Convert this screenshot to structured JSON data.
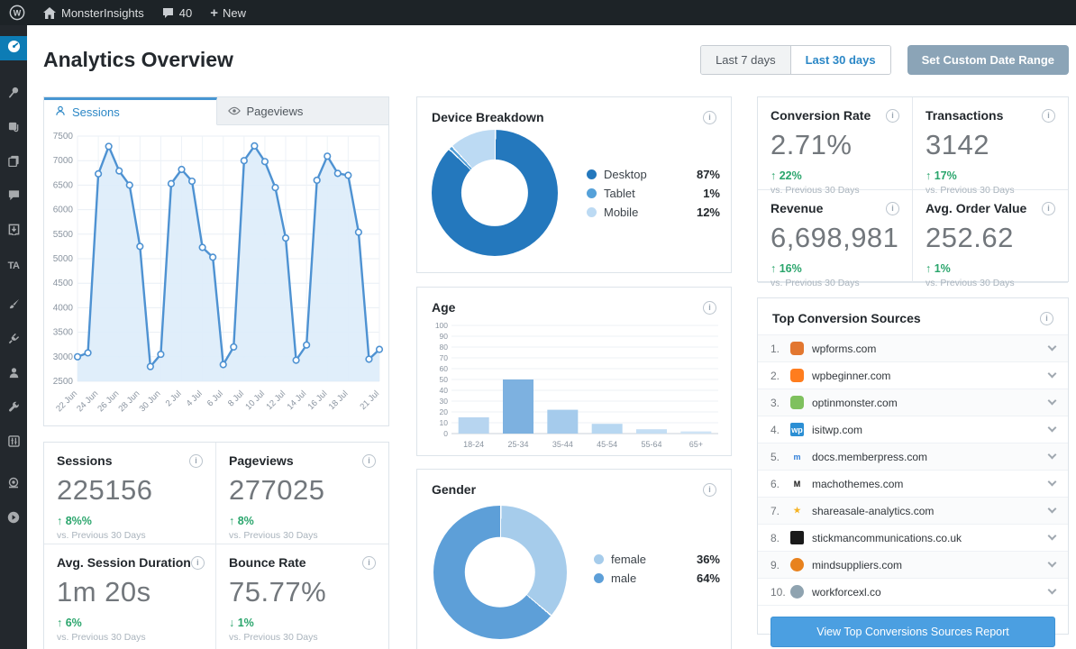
{
  "admin_bar": {
    "site_name": "MonsterInsights",
    "comments_count": "40",
    "new_label": "New"
  },
  "header": {
    "title": "Analytics Overview",
    "range_buttons": [
      {
        "label": "Last 7 days",
        "active": false
      },
      {
        "label": "Last 30 days",
        "active": true
      }
    ],
    "custom_range_label": "Set Custom Date Range"
  },
  "tabs": [
    {
      "label": "Sessions",
      "active": true
    },
    {
      "label": "Pageviews",
      "active": false
    }
  ],
  "chart_data": [
    {
      "id": "sessions-line",
      "type": "line",
      "title": "Sessions",
      "x_labels": [
        "22 Jun",
        "24 Jun",
        "26 Jun",
        "28 Jun",
        "30 Jun",
        "2 Jul",
        "4 Jul",
        "6 Jul",
        "8 Jul",
        "10 Jul",
        "12 Jul",
        "14 Jul",
        "16 Jul",
        "18 Jul",
        "21 Jul"
      ],
      "label_indices": [
        0,
        2,
        4,
        6,
        8,
        10,
        12,
        14,
        16,
        18,
        20,
        22,
        24,
        26,
        29
      ],
      "values": [
        3000,
        3080,
        6730,
        7290,
        6790,
        6500,
        5250,
        2800,
        3050,
        6530,
        6820,
        6580,
        5230,
        5030,
        2840,
        3200,
        7000,
        7300,
        6980,
        6450,
        5420,
        2930,
        3240,
        6600,
        7090,
        6740,
        6700,
        5540,
        2950,
        3150
      ],
      "ylim": [
        2500,
        7500
      ],
      "ytick_step": 500,
      "grid": true,
      "line_color": "#4e92d2",
      "fill_color": "#ddecf9",
      "point_fill": "#ffffff"
    },
    {
      "id": "device-donut",
      "type": "pie",
      "title": "Device Breakdown",
      "labels": [
        "Desktop",
        "Tablet",
        "Mobile"
      ],
      "values": [
        87,
        1,
        12
      ],
      "pct_labels": [
        "87%",
        "1%",
        "12%"
      ],
      "colors": [
        "#2478bd",
        "#55a1d9",
        "#bcdaf3"
      ],
      "legend_position": "right"
    },
    {
      "id": "age-bar",
      "type": "bar",
      "title": "Age",
      "categories": [
        "18-24",
        "25-34",
        "35-44",
        "45-54",
        "55-64",
        "65+"
      ],
      "values": [
        15,
        50,
        22,
        9,
        4,
        2
      ],
      "ylim": [
        0,
        100
      ],
      "ytick_step": 10,
      "grid": true,
      "bar_colors": [
        "#b7d5f0",
        "#7db1e0",
        "#a5cbec",
        "#b7d7f1",
        "#c4def4",
        "#cfe4f6"
      ]
    },
    {
      "id": "gender-donut",
      "type": "pie",
      "title": "Gender",
      "labels": [
        "female",
        "male"
      ],
      "values": [
        36,
        64
      ],
      "pct_labels": [
        "36%",
        "64%"
      ],
      "colors": [
        "#a6cceb",
        "#5d9fd8"
      ],
      "legend_position": "right"
    }
  ],
  "stat_cards_left": [
    {
      "title": "Sessions",
      "value": "225156",
      "trend_dir": "up",
      "trend": "8%%",
      "compare": "vs. Previous 30 Days"
    },
    {
      "title": "Pageviews",
      "value": "277025",
      "trend_dir": "up",
      "trend": "8%",
      "compare": "vs. Previous 30 Days"
    },
    {
      "title": "Avg. Session Duration",
      "value": "1m 20s",
      "trend_dir": "up",
      "trend": "6%",
      "compare": "vs. Previous 30 Days"
    },
    {
      "title": "Bounce Rate",
      "value": "75.77%",
      "trend_dir": "down",
      "trend": "1%",
      "compare": "vs. Previous 30 Days"
    }
  ],
  "stat_cards_right": [
    {
      "title": "Conversion Rate",
      "value": "2.71%",
      "trend_dir": "up",
      "trend": "22%",
      "compare": "vs. Previous 30 Days"
    },
    {
      "title": "Transactions",
      "value": "3142",
      "trend_dir": "up",
      "trend": "17%",
      "compare": "vs. Previous 30 Days"
    },
    {
      "title": "Revenue",
      "value": "6,698,981",
      "trend_dir": "up",
      "trend": "16%",
      "compare": "vs. Previous 30 Days"
    },
    {
      "title": "Avg. Order Value",
      "value": "252.62",
      "trend_dir": "up",
      "trend": "1%",
      "compare": "vs. Previous 30 Days"
    }
  ],
  "top_sources": {
    "title": "Top Conversion Sources",
    "button_label": "View Top Conversions Sources Report",
    "items": [
      {
        "rank": "1.",
        "domain": "wpforms.com",
        "favicon": {
          "bg": "#e27730",
          "fg": "#ffffff",
          "glyph": "",
          "shape": "round"
        }
      },
      {
        "rank": "2.",
        "domain": "wpbeginner.com",
        "favicon": {
          "bg": "#ff7d1e",
          "fg": "#ffffff",
          "glyph": "",
          "shape": "round"
        }
      },
      {
        "rank": "3.",
        "domain": "optinmonster.com",
        "favicon": {
          "bg": "#7fc15e",
          "fg": "#ffffff",
          "glyph": "",
          "shape": "round"
        }
      },
      {
        "rank": "4.",
        "domain": "isitwp.com",
        "favicon": {
          "bg": "#2c8fd4",
          "fg": "#ffffff",
          "glyph": "wp",
          "shape": "square"
        }
      },
      {
        "rank": "5.",
        "domain": "docs.memberpress.com",
        "favicon": {
          "bg": "transparent",
          "fg": "#2f7ed8",
          "glyph": "m",
          "shape": "plain"
        }
      },
      {
        "rank": "6.",
        "domain": "machothemes.com",
        "favicon": {
          "bg": "transparent",
          "fg": "#111111",
          "glyph": "M",
          "shape": "plain"
        }
      },
      {
        "rank": "7.",
        "domain": "shareasale-analytics.com",
        "favicon": {
          "bg": "transparent",
          "fg": "#f5b324",
          "glyph": "★",
          "shape": "plain"
        }
      },
      {
        "rank": "8.",
        "domain": "stickmancommunications.co.uk",
        "favicon": {
          "bg": "#1a1a1a",
          "fg": "#ffffff",
          "glyph": "",
          "shape": "square"
        }
      },
      {
        "rank": "9.",
        "domain": "mindsuppliers.com",
        "favicon": {
          "bg": "#e8821e",
          "fg": "#ffffff",
          "glyph": "",
          "shape": "circle"
        }
      },
      {
        "rank": "10.",
        "domain": "workforcexl.co",
        "favicon": {
          "bg": "#8fa3b0",
          "fg": "#ffffff",
          "glyph": "",
          "shape": "circle"
        }
      }
    ]
  },
  "colors": {
    "accent_blue": "#2b87c6",
    "trend_green": "#2aa56c",
    "admin_bar_bg": "#1d2327",
    "sidebar_bg": "#23282d",
    "sidebar_active": "#0d7cb5",
    "panel_border": "#dde4ea"
  }
}
